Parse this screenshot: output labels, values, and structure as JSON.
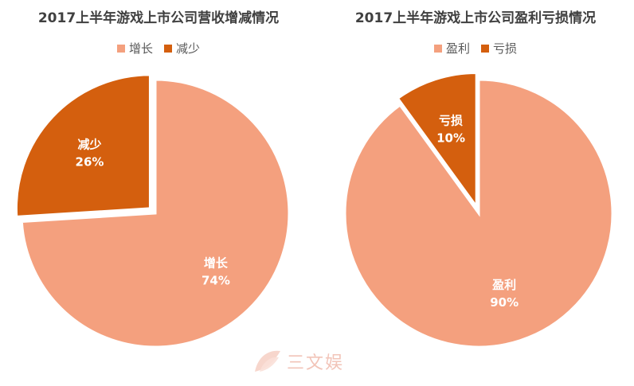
{
  "chart_data": [
    {
      "type": "pie",
      "title": "2017上半年游戏上市公司营收增减情况",
      "legend_position": "top",
      "slices": [
        {
          "name": "增长",
          "value": 74,
          "label": "74%",
          "color": "#f4a07e",
          "exploded": false
        },
        {
          "name": "减少",
          "value": 26,
          "label": "26%",
          "color": "#d45f0e",
          "exploded": true
        }
      ]
    },
    {
      "type": "pie",
      "title": "2017上半年游戏上市公司盈利亏损情况",
      "legend_position": "top",
      "slices": [
        {
          "name": "盈利",
          "value": 90,
          "label": "90%",
          "color": "#f4a07e",
          "exploded": false
        },
        {
          "name": "亏损",
          "value": 10,
          "label": "10%",
          "color": "#d45f0e",
          "exploded": true
        }
      ]
    }
  ],
  "watermark": {
    "text": "三文娱",
    "icon": "leaf-logo-icon"
  }
}
